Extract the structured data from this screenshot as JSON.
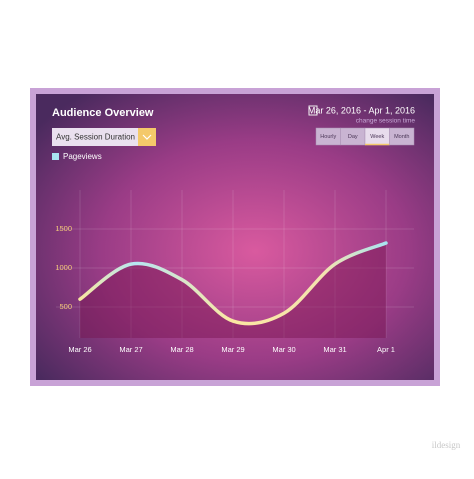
{
  "header": {
    "title": "Audience Overview",
    "date_range": "Mar 26, 2016 - Apr 1, 2016",
    "change_link": "change session time",
    "metric_dropdown": "Avg. Session Duration",
    "range_buttons": [
      "Hourly",
      "Day",
      "Week",
      "Month"
    ],
    "selected_button": 2
  },
  "watermark": "ildesign",
  "chart_data": {
    "type": "line",
    "categories": [
      "Mar 26",
      "Mar 27",
      "Mar 28",
      "Mar 29",
      "Mar 30",
      "Mar 31",
      "Apr 1"
    ],
    "series": [
      {
        "name": "Pageviews",
        "color": "#a8e4f0",
        "values": [
          600,
          1050,
          850,
          320,
          420,
          1050,
          1320
        ]
      }
    ],
    "ylim": [
      0,
      2000
    ],
    "yticks": [
      500,
      1000,
      1500
    ],
    "grid": true
  }
}
